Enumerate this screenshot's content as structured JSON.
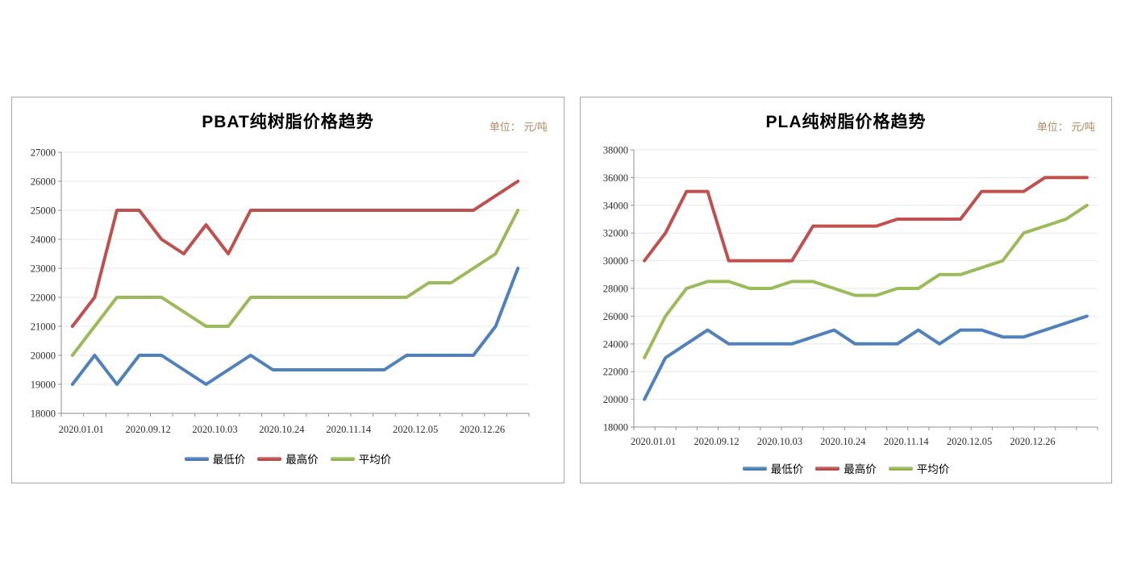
{
  "page": {
    "background_color": "#ffffff"
  },
  "styles": {
    "axis_color": "#8f8f8f",
    "gridline_color": "#e8e8e8",
    "tick_label_color": "#2e2e2e",
    "unit_label_color": "#b08b64",
    "series_colors": {
      "low": "#4f81bd",
      "high": "#c0504d",
      "avg": "#9bbb59"
    }
  },
  "chart_data": [
    {
      "type": "line",
      "title": "PBAT纯树脂价格趋势",
      "unit_label": "单位： 元/吨",
      "ylim": [
        18000,
        27000
      ],
      "y_tick_step": 1000,
      "y_ticks": [
        27000,
        26000,
        25000,
        24000,
        23000,
        22000,
        21000,
        20000,
        19000,
        18000
      ],
      "x_tick_labels": [
        "2020.01.01",
        "2020.09.12",
        "2020.10.03",
        "2020.10.24",
        "2020.11.14",
        "2020.12.05",
        "2020.12.26"
      ],
      "x_label_point_indices": [
        0,
        3,
        6,
        9,
        12,
        15,
        18
      ],
      "n_points": 21,
      "grid": true,
      "legend_position": "bottom",
      "series": [
        {
          "name": "最低价",
          "color": "#4f81bd",
          "values": [
            19000,
            20000,
            19000,
            20000,
            20000,
            19500,
            19000,
            19500,
            20000,
            19500,
            19500,
            19500,
            19500,
            19500,
            19500,
            20000,
            20000,
            20000,
            20000,
            21000,
            23000
          ]
        },
        {
          "name": "最高价",
          "color": "#c0504d",
          "values": [
            21000,
            22000,
            25000,
            25000,
            24000,
            23500,
            24500,
            23500,
            25000,
            25000,
            25000,
            25000,
            25000,
            25000,
            25000,
            25000,
            25000,
            25000,
            25000,
            25500,
            26000
          ]
        },
        {
          "name": "平均价",
          "color": "#9bbb59",
          "values": [
            20000,
            21000,
            22000,
            22000,
            22000,
            21500,
            21000,
            21000,
            22000,
            22000,
            22000,
            22000,
            22000,
            22000,
            22000,
            22000,
            22500,
            22500,
            23000,
            23500,
            25000
          ]
        }
      ]
    },
    {
      "type": "line",
      "title": "PLA纯树脂价格趋势",
      "unit_label": "单位： 元/吨",
      "ylim": [
        18000,
        38000
      ],
      "y_tick_step": 2000,
      "y_ticks": [
        38000,
        36000,
        34000,
        32000,
        30000,
        28000,
        26000,
        24000,
        22000,
        20000,
        18000
      ],
      "x_tick_labels": [
        "2020.01.01",
        "2020.09.12",
        "2020.10.03",
        "2020.10.24",
        "2020.11.14",
        "2020.12.05",
        "2020.12.26"
      ],
      "x_label_point_indices": [
        0,
        3,
        6,
        9,
        12,
        15,
        18
      ],
      "n_points": 22,
      "grid": true,
      "legend_position": "bottom",
      "series": [
        {
          "name": "最低价",
          "color": "#4f81bd",
          "values": [
            20000,
            23000,
            24000,
            25000,
            24000,
            24000,
            24000,
            24000,
            24500,
            25000,
            24000,
            24000,
            24000,
            25000,
            24000,
            25000,
            25000,
            24500,
            24500,
            25000,
            25500,
            26000
          ]
        },
        {
          "name": "最高价",
          "color": "#c0504d",
          "values": [
            30000,
            32000,
            35000,
            35000,
            30000,
            30000,
            30000,
            30000,
            32500,
            32500,
            32500,
            32500,
            33000,
            33000,
            33000,
            33000,
            35000,
            35000,
            35000,
            36000,
            36000,
            36000
          ]
        },
        {
          "name": "平均价",
          "color": "#9bbb59",
          "values": [
            23000,
            26000,
            28000,
            28500,
            28500,
            28000,
            28000,
            28500,
            28500,
            28000,
            27500,
            27500,
            28000,
            28000,
            29000,
            29000,
            29500,
            30000,
            32000,
            32500,
            33000,
            34000
          ]
        }
      ]
    }
  ]
}
